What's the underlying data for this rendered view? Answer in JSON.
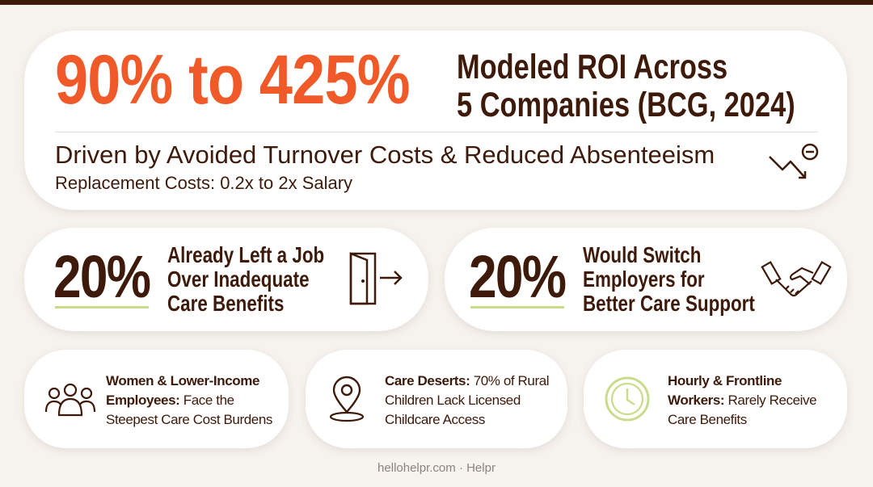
{
  "hero": {
    "headline": "90% to 425%",
    "title_lines": [
      "Modeled ROI Across",
      "5 Companies (BCG, 2024)"
    ],
    "subtitle": "Driven by Avoided Turnover Costs & Reduced Absenteeism",
    "note": "Replacement Costs: 0.2x to 2x Salary"
  },
  "stats": [
    {
      "value": "20%",
      "lines": [
        "Already Left a Job",
        "Over Inadequate",
        "Care Benefits"
      ]
    },
    {
      "value": "20%",
      "lines": [
        "Would Switch",
        "Employers for",
        "Better Care Support"
      ]
    }
  ],
  "facts": [
    {
      "lead": "Women & Lower-Income Employees:",
      "text": "Face the Steepest Care Cost Burdens"
    },
    {
      "lead": "Care Deserts:",
      "text": "70% of Rural Children Lack Licensed Childcare Access"
    },
    {
      "lead": "Hourly & Frontline Workers:",
      "text": "Rarely Receive Care Benefits"
    }
  ],
  "footer": "hellohelpr.com · Helpr"
}
